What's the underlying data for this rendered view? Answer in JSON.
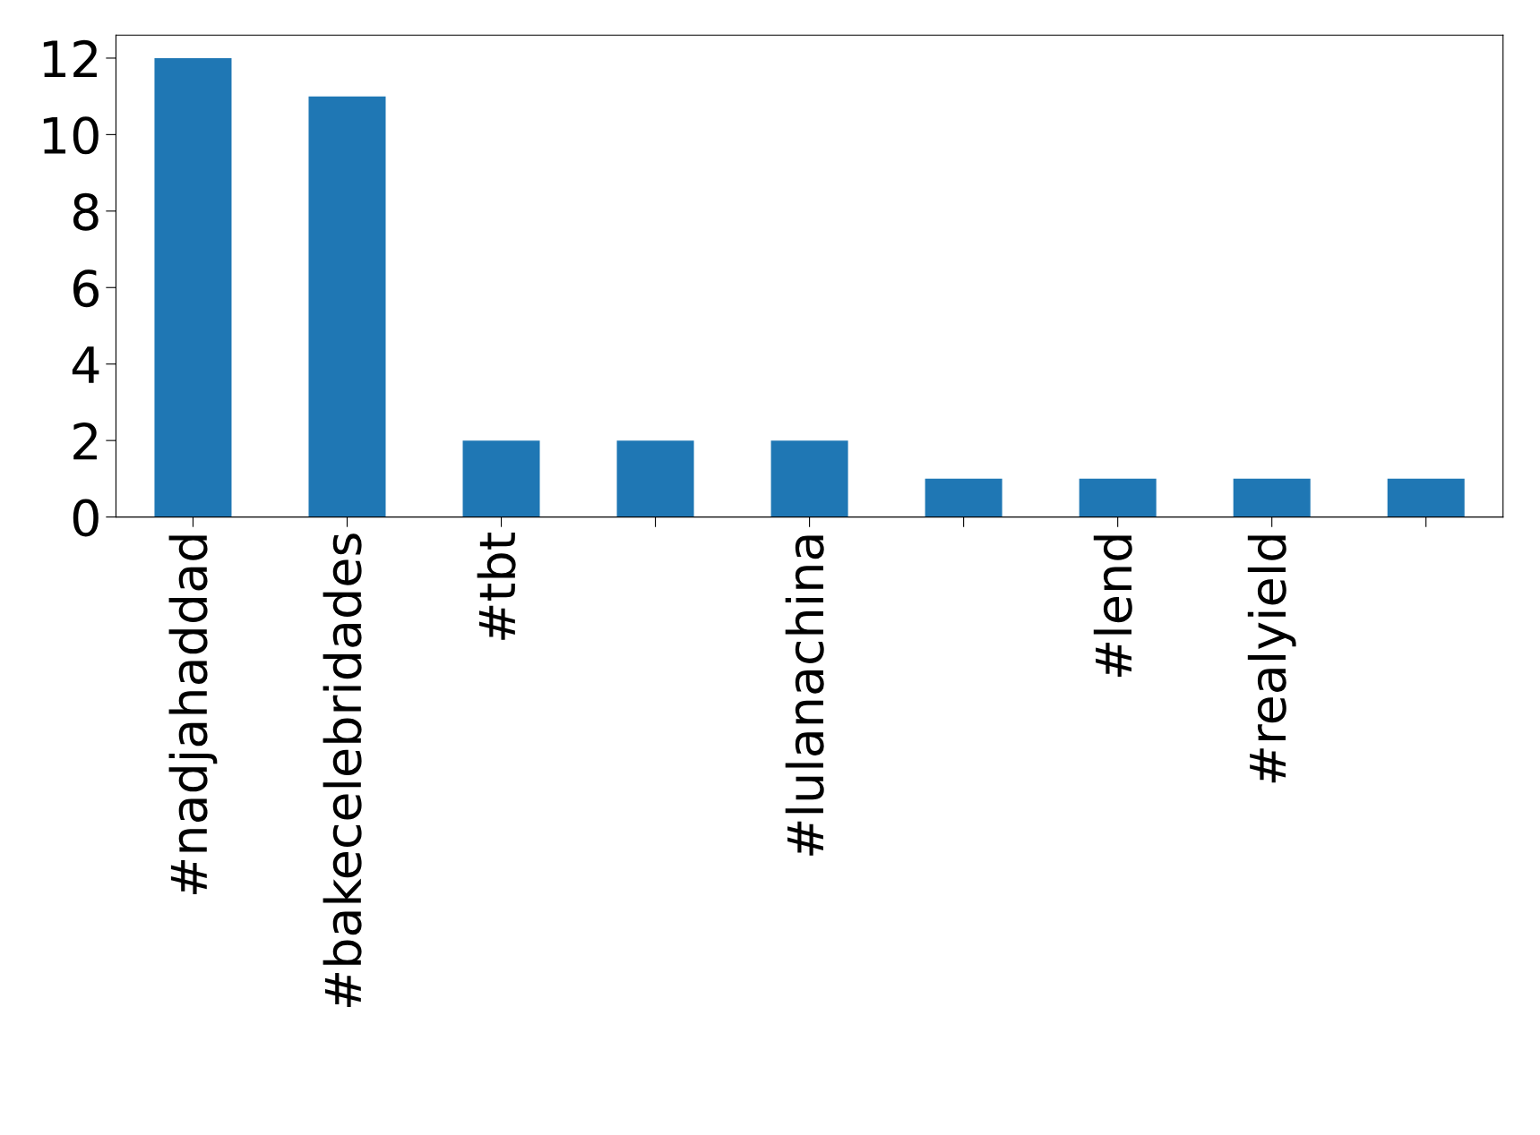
{
  "chart_data": {
    "type": "bar",
    "categories": [
      "#nadjahaddad",
      "#bakecelebridades",
      "#tbt",
      null,
      "#lulanachina",
      null,
      "#lend",
      "#realyield",
      null
    ],
    "values": [
      12,
      11,
      2,
      2,
      2,
      1,
      1,
      1,
      1
    ],
    "color": "#1f77b4",
    "ylim": [
      0,
      12.6
    ],
    "yticks": [
      0,
      2,
      4,
      6,
      8,
      10,
      12
    ],
    "grid": false,
    "legend": false
  }
}
